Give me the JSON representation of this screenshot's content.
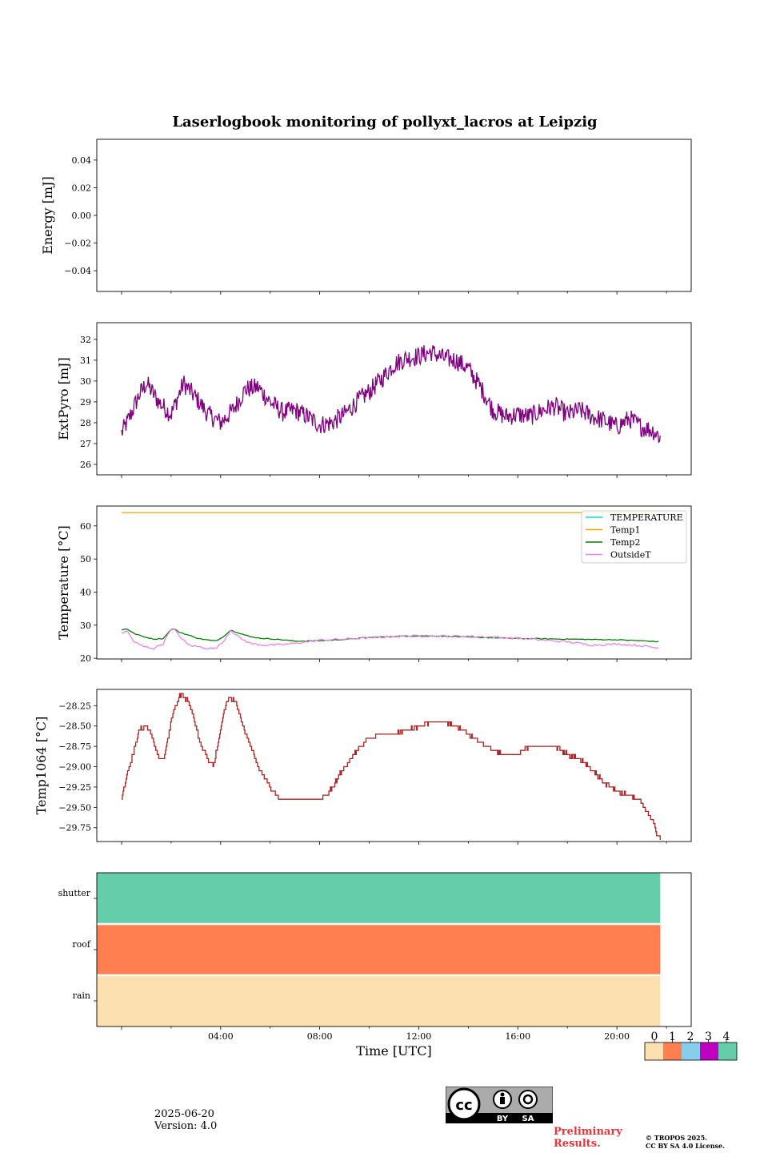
{
  "chart_data": [
    {
      "type": "line",
      "title": "Laserlogbook monitoring of pollyxt_lacros at Leipzig",
      "ylabel": "Energy [mJ]",
      "ylim": [
        -0.055,
        0.055
      ],
      "yticks": [
        0.04,
        0.02,
        0.0,
        -0.02,
        -0.04
      ],
      "ytick_labels": [
        "0.04",
        "0.02",
        "0.00",
        "−0.02",
        "−0.04"
      ],
      "series": []
    },
    {
      "type": "line",
      "ylabel": "ExtPyro [mJ]",
      "ylim": [
        25.5,
        32.8
      ],
      "yticks": [
        26,
        27,
        28,
        29,
        30,
        31,
        32
      ],
      "ytick_labels": [
        "26",
        "27",
        "28",
        "29",
        "30",
        "31",
        "32"
      ],
      "color": "#800080",
      "series": [
        {
          "x": [
            0.0,
            0.3,
            0.7,
            1.0,
            1.5,
            2.0,
            2.5,
            3.0,
            3.5,
            4.0,
            4.5,
            5.0,
            5.5,
            6.0,
            6.5,
            7.0,
            7.5,
            8.0,
            8.5,
            9.0,
            9.5,
            10.0,
            10.5,
            11.0,
            11.5,
            12.0,
            12.5,
            13.0,
            13.5,
            14.0,
            14.5,
            15.0,
            15.5,
            16.0,
            16.5,
            17.0,
            17.5,
            18.0,
            18.5,
            19.0,
            19.5,
            20.0,
            20.5,
            21.0,
            21.5,
            21.75
          ],
          "y": [
            27.5,
            28.2,
            29.3,
            29.9,
            29.0,
            28.4,
            29.9,
            29.2,
            28.4,
            28.0,
            28.6,
            29.6,
            29.7,
            29.0,
            28.5,
            28.6,
            28.3,
            27.9,
            28.0,
            28.4,
            29.0,
            29.5,
            30.1,
            30.8,
            31.1,
            31.2,
            31.4,
            31.1,
            31.0,
            30.6,
            29.7,
            28.6,
            28.3,
            28.4,
            28.3,
            28.6,
            28.8,
            28.4,
            28.6,
            28.3,
            28.1,
            27.8,
            28.2,
            27.8,
            27.6,
            27.3
          ],
          "noise": 0.85
        }
      ]
    },
    {
      "type": "line",
      "ylabel": "Temperature [°C]",
      "ylim": [
        19.8,
        66
      ],
      "yticks": [
        20,
        30,
        40,
        50,
        60
      ],
      "ytick_labels": [
        "20",
        "30",
        "40",
        "50",
        "60"
      ],
      "legend": "top-right",
      "series": [
        {
          "name": "TEMPERATURE",
          "color": "#00e5ee",
          "x": [],
          "y": []
        },
        {
          "name": "Temp1",
          "color": "#ffa500",
          "x": [
            0,
            21.75
          ],
          "y": [
            64,
            64
          ]
        },
        {
          "name": "Temp2",
          "color": "#008000",
          "x": [
            0.0,
            0.2,
            0.5,
            0.9,
            1.3,
            1.7,
            1.9,
            2.1,
            2.3,
            2.7,
            3.1,
            3.5,
            3.8,
            4.1,
            4.4,
            4.8,
            5.2,
            5.7,
            6.2,
            7.0,
            8.0,
            9.0,
            10.0,
            11.0,
            12.0,
            13.0,
            14.0,
            15.0,
            16.0,
            17.0,
            18.0,
            19.0,
            20.0,
            21.0,
            21.75
          ],
          "y": [
            28.5,
            29.0,
            27.5,
            26.5,
            25.8,
            26.0,
            28.0,
            29.0,
            28.0,
            27.0,
            26.0,
            25.5,
            25.2,
            26.5,
            28.5,
            27.5,
            26.5,
            26.0,
            25.8,
            25.2,
            25.3,
            25.7,
            26.3,
            26.6,
            26.8,
            26.7,
            26.4,
            26.2,
            26.0,
            25.9,
            25.8,
            25.7,
            25.6,
            25.3,
            25.0
          ],
          "noise": 0.25
        },
        {
          "name": "OutsideT",
          "color": "#ee82ee",
          "x": [
            0.0,
            0.2,
            0.5,
            0.9,
            1.3,
            1.7,
            1.9,
            2.1,
            2.3,
            2.7,
            3.1,
            3.5,
            3.8,
            4.1,
            4.4,
            4.8,
            5.2,
            5.7,
            6.2,
            7.0,
            8.0,
            9.0,
            10.0,
            11.0,
            12.0,
            13.0,
            14.0,
            15.0,
            16.0,
            17.0,
            18.0,
            19.0,
            20.0,
            21.0,
            21.75
          ],
          "y": [
            27.5,
            28.5,
            25.0,
            23.5,
            23.0,
            24.5,
            28.0,
            29.0,
            27.0,
            24.0,
            23.5,
            23.0,
            23.0,
            25.0,
            28.5,
            26.0,
            24.5,
            24.0,
            24.0,
            24.5,
            25.5,
            25.8,
            26.2,
            26.6,
            26.8,
            26.7,
            26.7,
            26.4,
            26.0,
            25.5,
            25.0,
            24.0,
            24.3,
            23.8,
            23.0
          ],
          "noise": 0.6
        }
      ]
    },
    {
      "type": "line",
      "ylabel": "Temp1064 [°C]",
      "ylim": [
        -29.92,
        -28.05
      ],
      "yticks": [
        -28.25,
        -28.5,
        -28.75,
        -29.0,
        -29.25,
        -29.5,
        -29.75
      ],
      "ytick_labels": [
        "−28.25",
        "−28.50",
        "−28.75",
        "−29.00",
        "−29.25",
        "−29.50",
        "−29.75"
      ],
      "color": "#b22222",
      "step": 0.05,
      "series": [
        {
          "x": [
            0.0,
            0.2,
            0.5,
            0.7,
            1.0,
            1.3,
            1.5,
            1.7,
            1.9,
            2.1,
            2.4,
            2.7,
            2.9,
            3.2,
            3.5,
            3.7,
            3.9,
            4.1,
            4.3,
            4.6,
            4.9,
            5.2,
            5.5,
            6.0,
            6.4,
            6.8,
            7.0,
            7.5,
            8.0,
            8.3,
            8.6,
            9.0,
            9.5,
            10.0,
            10.5,
            11.0,
            11.5,
            12.0,
            12.5,
            13.0,
            13.5,
            14.0,
            14.5,
            15.0,
            15.5,
            16.0,
            16.5,
            17.0,
            17.5,
            18.0,
            18.5,
            19.0,
            19.5,
            20.0,
            20.5,
            21.0,
            21.3,
            21.5,
            21.6,
            21.75
          ],
          "y": [
            -29.4,
            -29.1,
            -28.8,
            -28.55,
            -28.5,
            -28.7,
            -28.9,
            -28.9,
            -28.6,
            -28.3,
            -28.1,
            -28.2,
            -28.4,
            -28.75,
            -28.9,
            -29.0,
            -28.7,
            -28.35,
            -28.15,
            -28.2,
            -28.5,
            -28.75,
            -29.0,
            -29.25,
            -29.4,
            -29.4,
            -29.4,
            -29.4,
            -29.4,
            -29.35,
            -29.2,
            -29.0,
            -28.8,
            -28.65,
            -28.6,
            -28.6,
            -28.55,
            -28.5,
            -28.45,
            -28.45,
            -28.5,
            -28.6,
            -28.7,
            -28.8,
            -28.85,
            -28.85,
            -28.75,
            -28.75,
            -28.75,
            -28.85,
            -28.9,
            -29.05,
            -29.2,
            -29.3,
            -29.35,
            -29.45,
            -29.6,
            -29.7,
            -29.82,
            -29.9
          ],
          "noise": 0.035
        }
      ]
    },
    {
      "type": "heatmap",
      "xlabel": "Time [UTC]",
      "xlim": [
        -1,
        23
      ],
      "xticks": [
        4,
        8,
        12,
        16,
        20
      ],
      "xtick_labels": [
        "04:00",
        "08:00",
        "12:00",
        "16:00",
        "20:00"
      ],
      "xdata_end": 21.75,
      "rows": [
        {
          "label": "shutter",
          "value": 4
        },
        {
          "label": "roof",
          "value": 1
        },
        {
          "label": "rain",
          "value": 0
        }
      ],
      "colorbar": {
        "ticks": [
          "0",
          "1",
          "2",
          "3",
          "4"
        ],
        "colors": [
          "#fde0b0",
          "#ff7f50",
          "#87ceeb",
          "#c000c0",
          "#66cdaa"
        ]
      }
    }
  ],
  "shared_x": {
    "xlim": [
      -1,
      23
    ],
    "major_every": 4,
    "minor_every": 2
  },
  "footer": {
    "date": "2025-06-20",
    "version": "Version: 4.0",
    "cc_label_by": "BY",
    "cc_label_sa": "SA",
    "cc_label_cc": "cc",
    "prelim_line1": "Preliminary",
    "prelim_line2": "Results.",
    "copyright_line1": "© TROPOS 2025.",
    "copyright_line2": "CC BY SA 4.0 License."
  }
}
